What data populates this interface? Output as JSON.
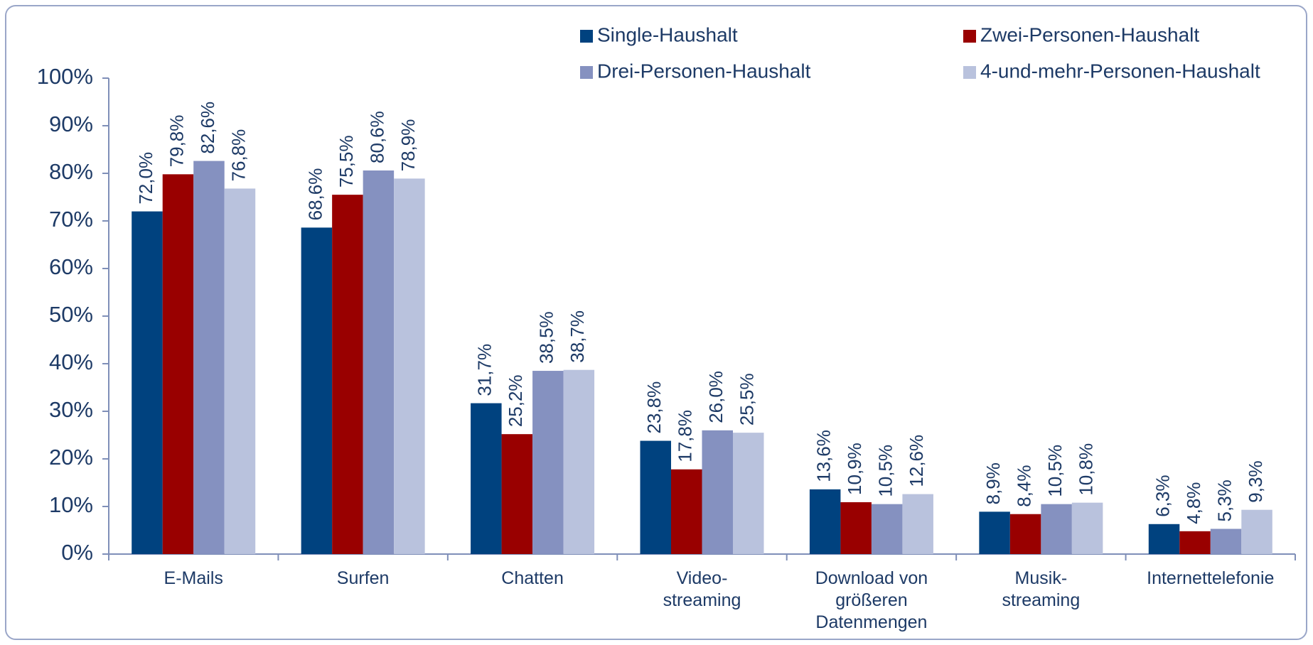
{
  "chart_data": {
    "type": "bar",
    "categories": [
      [
        "E-Mails"
      ],
      [
        "Surfen"
      ],
      [
        "Chatten"
      ],
      [
        "Video-",
        "streaming"
      ],
      [
        "Download von",
        "größeren",
        "Datenmengen"
      ],
      [
        "Musik-",
        "streaming"
      ],
      [
        "Internettelefonie"
      ]
    ],
    "series": [
      {
        "name": "Single-Haushalt",
        "color": "#00427f",
        "values": [
          72.0,
          68.6,
          31.7,
          23.8,
          13.6,
          8.9,
          6.3
        ],
        "value_labels": [
          "72,0%",
          "68,6%",
          "31,7%",
          "23,8%",
          "13,6%",
          "8,9%",
          "6,3%"
        ]
      },
      {
        "name": "Zwei-Personen-Haushalt",
        "color": "#990000",
        "values": [
          79.8,
          75.5,
          25.2,
          17.8,
          10.9,
          8.4,
          4.8
        ],
        "value_labels": [
          "79,8%",
          "75,5%",
          "25,2%",
          "17,8%",
          "10,9%",
          "8,4%",
          "4,8%"
        ]
      },
      {
        "name": "Drei-Personen-Haushalt",
        "color": "#8591c0",
        "values": [
          82.6,
          80.6,
          38.5,
          26.0,
          10.5,
          10.5,
          5.3
        ],
        "value_labels": [
          "82,6%",
          "80,6%",
          "38,5%",
          "26,0%",
          "10,5%",
          "10,5%",
          "5,3%"
        ]
      },
      {
        "name": "4-und-mehr-Personen-Haushalt",
        "color": "#b9c2dd",
        "values": [
          76.8,
          78.9,
          38.7,
          25.5,
          12.6,
          10.8,
          9.3
        ],
        "value_labels": [
          "76,8%",
          "78,9%",
          "38,7%",
          "25,5%",
          "12,6%",
          "10,8%",
          "9,3%"
        ]
      }
    ],
    "ylim": [
      0,
      100
    ],
    "yticks": [
      {
        "value": 0,
        "label": "0%"
      },
      {
        "value": 10,
        "label": "10%"
      },
      {
        "value": 20,
        "label": "20%"
      },
      {
        "value": 30,
        "label": "30%"
      },
      {
        "value": 40,
        "label": "40%"
      },
      {
        "value": 50,
        "label": "50%"
      },
      {
        "value": 60,
        "label": "60%"
      },
      {
        "value": 70,
        "label": "70%"
      },
      {
        "value": 80,
        "label": "80%"
      },
      {
        "value": 90,
        "label": "90%"
      },
      {
        "value": 100,
        "label": "100%"
      }
    ],
    "grid": false
  }
}
